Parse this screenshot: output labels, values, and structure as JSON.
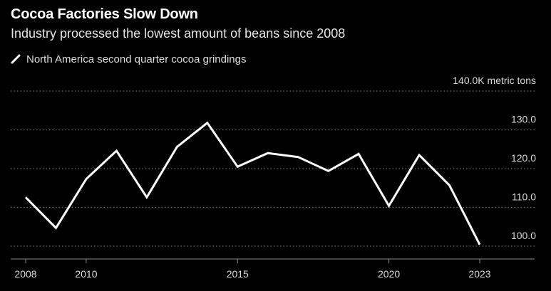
{
  "title": "Cocoa Factories Slow Down",
  "subtitle": "Industry processed the lowest amount of beans since 2008",
  "legend": {
    "label": "North America second quarter cocoa grindings",
    "icon": "white-slash-line-icon"
  },
  "colors": {
    "background": "#000000",
    "line": "#ffffff",
    "grid": "#6e6e6e",
    "text": "#ffffff",
    "tick_text": "#d9d9d9"
  },
  "chart_data": {
    "type": "line",
    "title": "Cocoa Factories Slow Down",
    "subtitle": "Industry processed the lowest amount of beans since 2008",
    "xlabel": "",
    "ylabel": "",
    "x": [
      2008,
      2009,
      2010,
      2011,
      2012,
      2013,
      2014,
      2015,
      2016,
      2017,
      2018,
      2019,
      2020,
      2021,
      2022,
      2023
    ],
    "series": [
      {
        "name": "North America second quarter cocoa grindings",
        "values": [
          112.6,
          104.7,
          117.3,
          124.6,
          112.6,
          125.6,
          131.8,
          120.5,
          124.0,
          123.0,
          119.4,
          123.8,
          110.4,
          123.5,
          115.7,
          100.4
        ]
      }
    ],
    "xlim": [
      2008,
      2023
    ],
    "ylim": [
      99,
      140
    ],
    "x_ticks": [
      "2008",
      "2010",
      "2015",
      "2020",
      "2023"
    ],
    "y_ticks": [
      "100.0",
      "110.0",
      "120.0",
      "130.0",
      "140.0K metric tons"
    ],
    "y_tick_values": [
      100,
      110,
      120,
      130,
      140
    ],
    "x_tick_values": [
      2008,
      2010,
      2015,
      2020,
      2023
    ],
    "grid": true,
    "y_axis_side": "right"
  }
}
